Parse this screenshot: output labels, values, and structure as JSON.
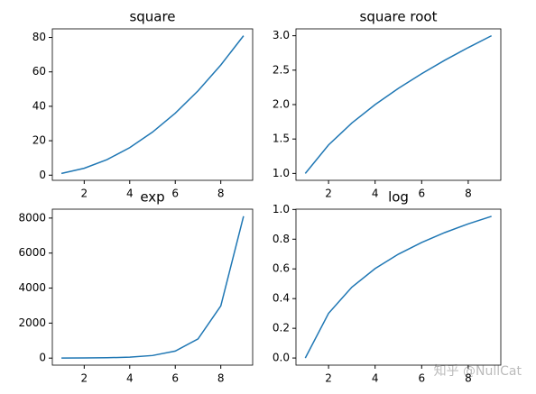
{
  "chart_data": [
    {
      "type": "line",
      "title": "square",
      "x": [
        1,
        2,
        3,
        4,
        5,
        6,
        7,
        8,
        9
      ],
      "series": [
        {
          "color": "#1f77b4",
          "values": [
            1,
            4,
            9,
            16,
            25,
            36,
            49,
            64,
            81
          ]
        }
      ],
      "xlim": [
        0.6,
        9.4
      ],
      "xticks": [
        2,
        4,
        6,
        8
      ],
      "ylim": [
        -3,
        85
      ],
      "yticks": [
        0,
        20,
        40,
        60,
        80
      ]
    },
    {
      "type": "line",
      "title": "square root",
      "x": [
        1,
        2,
        3,
        4,
        5,
        6,
        7,
        8,
        9
      ],
      "series": [
        {
          "color": "#1f77b4",
          "values": [
            1,
            1.414,
            1.732,
            2,
            2.236,
            2.449,
            2.646,
            2.828,
            3
          ]
        }
      ],
      "xlim": [
        0.6,
        9.4
      ],
      "xticks": [
        2,
        4,
        6,
        8
      ],
      "ylim": [
        0.9,
        3.1
      ],
      "yticks": [
        {
          "value": 1,
          "label": "1.0"
        },
        1.5,
        {
          "value": 2,
          "label": "2.0"
        },
        2.5,
        {
          "value": 3,
          "label": "3.0"
        }
      ]
    },
    {
      "type": "line",
      "title": "exp",
      "x": [
        1,
        2,
        3,
        4,
        5,
        6,
        7,
        8,
        9
      ],
      "series": [
        {
          "color": "#1f77b4",
          "values": [
            2.718,
            7.389,
            20.09,
            54.6,
            148.4,
            403.4,
            1096.6,
            2981,
            8103.1
          ]
        }
      ],
      "xlim": [
        0.6,
        9.4
      ],
      "xticks": [
        2,
        4,
        6,
        8
      ],
      "ylim": [
        -402,
        8508
      ],
      "yticks": [
        0,
        2000,
        4000,
        6000,
        8000
      ]
    },
    {
      "type": "line",
      "title": "log",
      "x": [
        1,
        2,
        3,
        4,
        5,
        6,
        7,
        8,
        9
      ],
      "series": [
        {
          "color": "#1f77b4",
          "values": [
            0,
            0.301,
            0.477,
            0.602,
            0.699,
            0.778,
            0.845,
            0.903,
            0.954
          ]
        }
      ],
      "xlim": [
        0.6,
        9.4
      ],
      "xticks": [
        2,
        4,
        6,
        8
      ],
      "ylim": [
        -0.048,
        1.002
      ],
      "yticks": [
        {
          "value": 0,
          "label": "0.0"
        },
        0.2,
        0.4,
        0.6,
        0.8,
        {
          "value": 1,
          "label": "1.0"
        }
      ]
    }
  ],
  "watermark": "知乎 @NullCat"
}
